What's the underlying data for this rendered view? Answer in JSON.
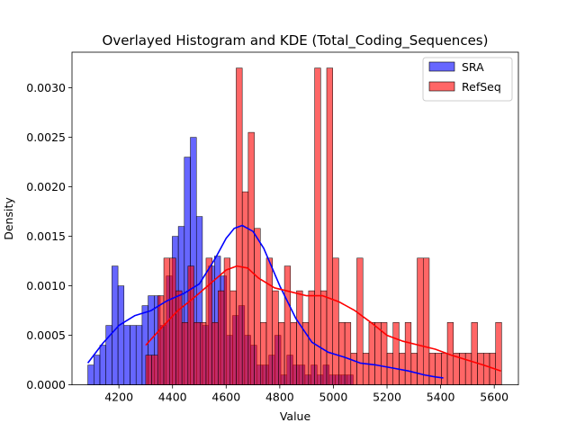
{
  "chart_data": {
    "type": "histogram",
    "title": "Overlayed Histogram and KDE (Total_Coding_Sequences)",
    "xlabel": "Value",
    "ylabel": "Density",
    "xlim": [
      4025,
      5690
    ],
    "ylim": [
      0,
      0.00336
    ],
    "xticks": [
      4200,
      4400,
      4600,
      4800,
      5000,
      5200,
      5400,
      5600
    ],
    "yticks": [
      0.0,
      0.0005,
      0.001,
      0.0015,
      0.002,
      0.0025,
      0.003
    ],
    "ytick_labels": [
      "0.0000",
      "0.0005",
      "0.0010",
      "0.0015",
      "0.0020",
      "0.0025",
      "0.0030"
    ],
    "legend": {
      "placement": "upper-right",
      "entries": [
        "SRA",
        "RefSeq"
      ]
    },
    "grid": false,
    "series": [
      {
        "name": "SRA",
        "color": "#0000ff",
        "bin_start": 4084,
        "bin_width": 22.5,
        "densities": [
          0.0002,
          0.0003,
          0.0004,
          0.0006,
          0.0012,
          0.001,
          0.0006,
          0.0006,
          0.0006,
          0.0008,
          0.0009,
          0.0009,
          0.0006,
          0.0011,
          0.0015,
          0.0016,
          0.0023,
          0.0025,
          0.0017,
          0.0006,
          0.0012,
          0.0013,
          0.0011,
          0.0005,
          0.0007,
          0.0008,
          0.0005,
          0.0004,
          0.0002,
          0.0002,
          0.0003,
          0.0005,
          0.0001,
          0.0003,
          0.0002,
          0.0002,
          0.0001,
          0.0002,
          0.0001,
          0.0002,
          0.0001,
          0.0001,
          0.0001,
          0.0001
        ],
        "kde": {
          "x": [
            4084,
            4140,
            4200,
            4260,
            4320,
            4380,
            4440,
            4500,
            4560,
            4600,
            4630,
            4660,
            4700,
            4740,
            4800,
            4860,
            4920,
            4980,
            5040,
            5100,
            5160,
            5220,
            5280,
            5340,
            5380,
            5410
          ],
          "y": [
            0.00022,
            0.00042,
            0.0006,
            0.0007,
            0.00075,
            0.00085,
            0.00092,
            0.00102,
            0.00128,
            0.00148,
            0.00158,
            0.00161,
            0.00155,
            0.00138,
            0.001,
            0.00067,
            0.00043,
            0.00033,
            0.00028,
            0.00022,
            0.0002,
            0.00017,
            0.00014,
            0.0001,
            8e-05,
            7e-05
          ]
        }
      },
      {
        "name": "RefSeq",
        "color": "#ff0000",
        "bin_start": 4300,
        "bin_width": 22.5,
        "densities": [
          0.0003,
          0.0003,
          0.0009,
          0.00128,
          0.00128,
          0.00095,
          0.00063,
          0.0012,
          0.00063,
          0.00063,
          0.00128,
          0.00063,
          0.00095,
          0.00128,
          0.00095,
          0.0032,
          0.00195,
          0.00255,
          0.00158,
          0.00063,
          0.00128,
          0.00095,
          0.00063,
          0.0012,
          0.00063,
          0.00095,
          0.00063,
          0.00095,
          0.0032,
          0.00095,
          0.0032,
          0.00128,
          0.00063,
          0.00063,
          0.00032,
          0.00128,
          0.00032,
          0.00063,
          0.00063,
          0.00063,
          0.00032,
          0.00063,
          0.00032,
          0.00063,
          0.00032,
          0.00128,
          0.00128,
          0.00032,
          0.00032,
          0.00032,
          0.00063,
          0.00032,
          0.00032,
          0.00032,
          0.00063,
          0.00032,
          0.00032,
          0.00032,
          0.00063
        ],
        "kde": {
          "x": [
            4300,
            4360,
            4420,
            4480,
            4540,
            4600,
            4640,
            4680,
            4720,
            4780,
            4840,
            4900,
            4960,
            5020,
            5080,
            5140,
            5200,
            5260,
            5320,
            5380,
            5440,
            5500,
            5560,
            5625
          ],
          "y": [
            0.0004,
            0.00058,
            0.00075,
            0.00088,
            0.00102,
            0.00116,
            0.0012,
            0.00118,
            0.00108,
            0.00098,
            0.00094,
            0.0009,
            0.0009,
            0.00084,
            0.00075,
            0.00063,
            0.0005,
            0.00044,
            0.0004,
            0.00036,
            0.0003,
            0.00025,
            0.0002,
            0.00014
          ]
        }
      }
    ]
  }
}
